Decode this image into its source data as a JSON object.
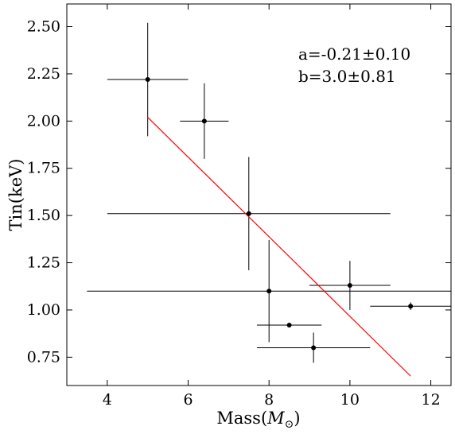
{
  "chart_data": {
    "type": "scatter",
    "title": "",
    "xlabel": "Mass(M_⊙)",
    "xlabel_parts": {
      "main": "Mass(",
      "var": "M",
      "sub": "⊙",
      "close": ")"
    },
    "ylabel": "Tin(keV)",
    "xlim": [
      3.0,
      12.5
    ],
    "ylim": [
      0.6,
      2.62
    ],
    "x_ticks": [
      4,
      6,
      8,
      10,
      12
    ],
    "x_tick_labels": [
      "4",
      "6",
      "8",
      "10",
      "12"
    ],
    "y_ticks": [
      0.75,
      1.0,
      1.25,
      1.5,
      1.75,
      2.0,
      2.25,
      2.5
    ],
    "y_tick_labels": [
      "0.75",
      "1.00",
      "1.25",
      "1.50",
      "1.75",
      "2.00",
      "2.25",
      "2.50"
    ],
    "grid": false,
    "points": [
      {
        "x": 5.0,
        "y": 2.22,
        "xerr": [
          4.0,
          6.0
        ],
        "yerr": [
          1.92,
          2.52
        ]
      },
      {
        "x": 6.4,
        "y": 2.0,
        "xerr": [
          5.8,
          7.0
        ],
        "yerr": [
          1.8,
          2.2
        ]
      },
      {
        "x": 7.5,
        "y": 1.51,
        "xerr": [
          4.0,
          11.0
        ],
        "yerr": [
          1.21,
          1.81
        ]
      },
      {
        "x": 8.0,
        "y": 1.1,
        "xerr": [
          3.5,
          12.5
        ],
        "yerr": [
          0.83,
          1.37
        ]
      },
      {
        "x": 8.5,
        "y": 0.92,
        "xerr": [
          7.7,
          9.3
        ],
        "yerr": [
          0.92,
          0.92
        ]
      },
      {
        "x": 9.1,
        "y": 0.8,
        "xerr": [
          7.7,
          10.5
        ],
        "yerr": [
          0.72,
          0.88
        ]
      },
      {
        "x": 10.0,
        "y": 1.13,
        "xerr": [
          9.0,
          11.0
        ],
        "yerr": [
          1.0,
          1.26
        ]
      },
      {
        "x": 11.5,
        "y": 1.02,
        "xerr": [
          10.5,
          12.5
        ],
        "yerr": [
          1.0,
          1.04
        ]
      }
    ],
    "fit_line": {
      "x": [
        5.0,
        11.5
      ],
      "y": [
        2.02,
        0.65
      ],
      "color": "#ff0000"
    },
    "annotations": [
      "a=-0.21±0.10",
      "b=3.0±0.81"
    ],
    "colors": {
      "points": "#000000",
      "fit": "#ff0000",
      "axes": "#000000"
    }
  }
}
